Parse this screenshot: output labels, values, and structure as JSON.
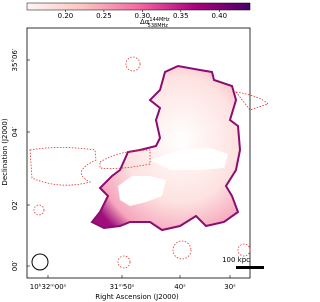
{
  "chart_data": {
    "type": "heatmap",
    "xlabel": "Right Ascension (J2000)",
    "ylabel": "Declination (J2000)",
    "xticks": [
      "10ʰ32ᵐ00ˢ",
      "31ᵐ50ˢ",
      "40ˢ",
      "30ˢ"
    ],
    "yticks": [
      "35°06′",
      "04′",
      "02′",
      "00′"
    ],
    "colorbar": {
      "symbol": "Δα",
      "sup": "144MHz",
      "sub": "538MHz",
      "lim": [
        0.15,
        0.44
      ],
      "ticks": [
        {
          "value": 0.2,
          "label": "0.20"
        },
        0.25,
        {
          "value": 0.3,
          "label": "0.30"
        },
        0.35,
        {
          "value": 0.4,
          "label": "0.40"
        }
      ],
      "colors": [
        "#fff5f3",
        "#fbc5c0",
        "#f768a1",
        "#ae017e",
        "#49006a"
      ]
    },
    "scalebar": "100 kpc"
  }
}
